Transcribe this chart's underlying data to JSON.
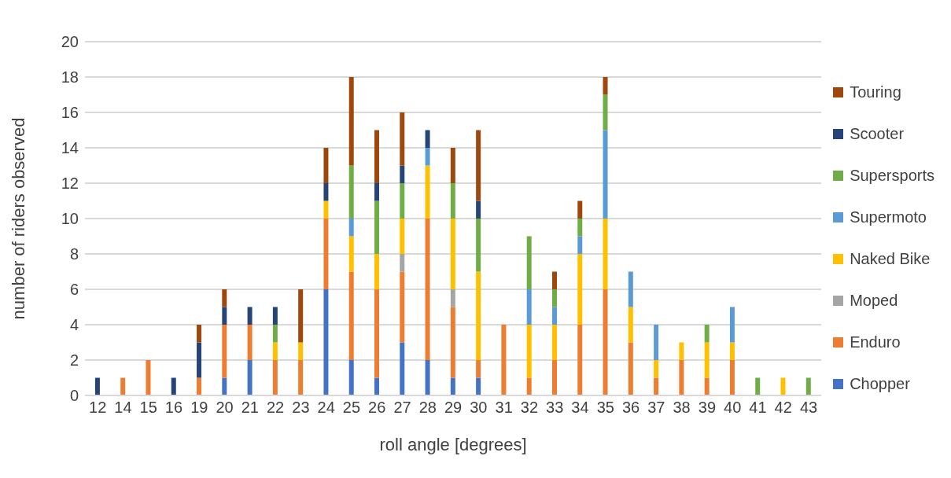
{
  "chart_data": {
    "type": "bar",
    "stacked": true,
    "xlabel": "roll angle [degrees]",
    "ylabel": "number of riders observed",
    "categories": [
      "12",
      "14",
      "15",
      "16",
      "19",
      "20",
      "21",
      "22",
      "23",
      "24",
      "25",
      "26",
      "27",
      "28",
      "29",
      "30",
      "31",
      "32",
      "33",
      "34",
      "35",
      "36",
      "37",
      "38",
      "39",
      "40",
      "41",
      "42",
      "43"
    ],
    "series": [
      {
        "name": "Chopper",
        "color": "#4472c4",
        "values": [
          null,
          null,
          null,
          null,
          null,
          1,
          2,
          null,
          null,
          6,
          2,
          1,
          3,
          2,
          1,
          1,
          null,
          null,
          null,
          null,
          null,
          null,
          null,
          null,
          null,
          null,
          null,
          null,
          null
        ]
      },
      {
        "name": "Enduro",
        "color": "#ed7d31",
        "values": [
          null,
          1,
          2,
          null,
          1,
          3,
          2,
          2,
          2,
          4,
          5,
          5,
          4,
          8,
          4,
          1,
          4,
          1,
          2,
          4,
          6,
          3,
          1,
          2,
          1,
          2,
          null,
          null,
          null
        ]
      },
      {
        "name": "Moped",
        "color": "#a5a5a5",
        "values": [
          null,
          null,
          null,
          null,
          null,
          null,
          null,
          null,
          null,
          null,
          null,
          null,
          1,
          null,
          1,
          null,
          null,
          null,
          null,
          null,
          null,
          null,
          null,
          null,
          null,
          null,
          null,
          null,
          null
        ]
      },
      {
        "name": "Naked Bike",
        "color": "#ffc000",
        "values": [
          null,
          null,
          null,
          null,
          null,
          null,
          null,
          1,
          1,
          1,
          2,
          2,
          2,
          3,
          4,
          5,
          null,
          3,
          2,
          4,
          4,
          2,
          1,
          1,
          2,
          1,
          null,
          1,
          null
        ]
      },
      {
        "name": "Supermoto",
        "color": "#5b9bd5",
        "values": [
          null,
          null,
          null,
          null,
          null,
          null,
          null,
          null,
          null,
          null,
          1,
          null,
          null,
          1,
          null,
          null,
          null,
          2,
          1,
          1,
          5,
          2,
          2,
          null,
          null,
          2,
          null,
          null,
          null
        ]
      },
      {
        "name": "Supersports",
        "color": "#70ad47",
        "values": [
          null,
          null,
          null,
          null,
          null,
          null,
          null,
          1,
          null,
          null,
          3,
          3,
          2,
          null,
          2,
          3,
          null,
          3,
          1,
          1,
          2,
          null,
          null,
          null,
          1,
          null,
          1,
          null,
          1
        ]
      },
      {
        "name": "Scooter",
        "color": "#264478",
        "values": [
          1,
          null,
          null,
          1,
          2,
          1,
          1,
          1,
          null,
          1,
          null,
          1,
          1,
          1,
          null,
          1,
          null,
          null,
          null,
          null,
          null,
          null,
          null,
          null,
          null,
          null,
          null,
          null,
          null
        ]
      },
      {
        "name": "Touring",
        "color": "#9e480e",
        "values": [
          null,
          null,
          null,
          null,
          1,
          1,
          null,
          null,
          3,
          2,
          5,
          3,
          3,
          null,
          2,
          4,
          null,
          null,
          1,
          1,
          1,
          null,
          null,
          null,
          null,
          null,
          null,
          null,
          null
        ]
      }
    ],
    "ylim": [
      0,
      20
    ],
    "yticks": [
      0,
      2,
      4,
      6,
      8,
      10,
      12,
      14,
      16,
      18,
      20
    ],
    "grid": "y",
    "legend": "right"
  }
}
